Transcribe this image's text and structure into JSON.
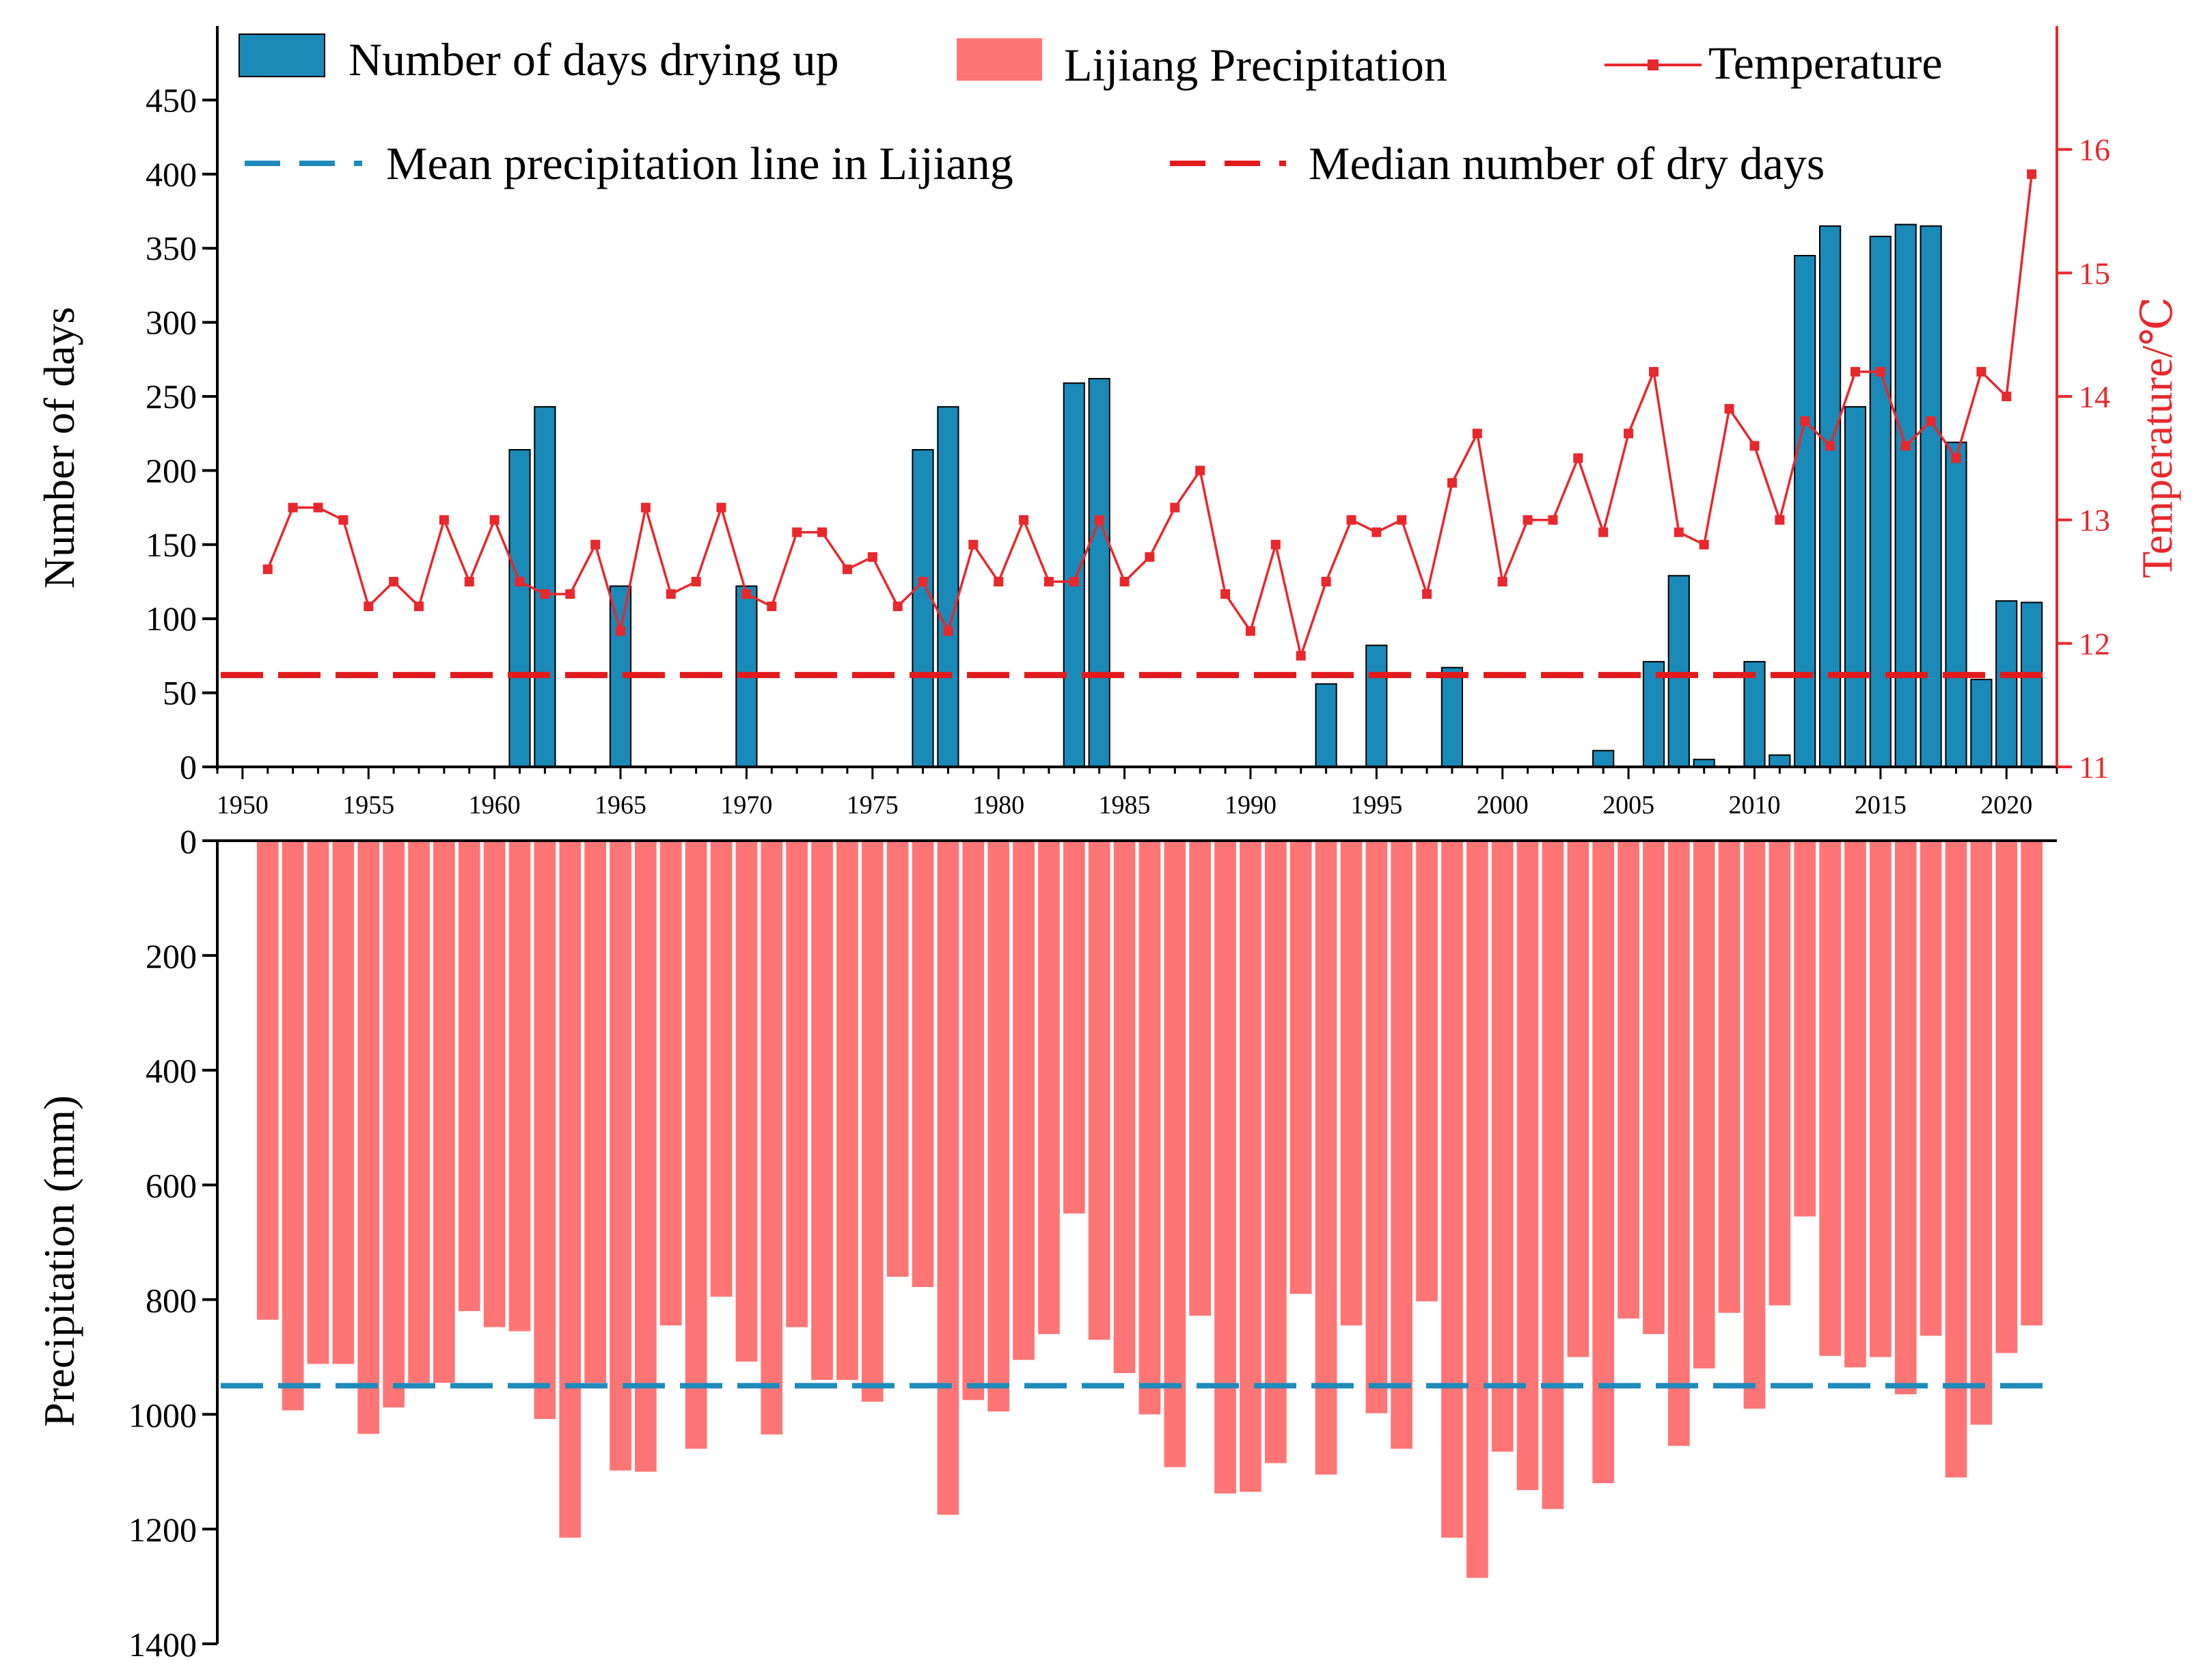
{
  "colors": {
    "drying_bar": "#1a8ab8",
    "precip_bar": "#ff7575",
    "temperature": "#e8282d",
    "mean_line": "#1f8bbb",
    "median_line": "#e31a1c",
    "axis": "#000000"
  },
  "legend": {
    "drying": "Number of days drying up",
    "precip": "Lijiang Precipitation",
    "temperature": "Temperature",
    "mean_line": "Mean precipitation line in Lijiang",
    "median_line": "Median number of dry days"
  },
  "chart_data": [
    {
      "type": "bar",
      "title": "",
      "xlabel": "",
      "ylabel": "Number of days",
      "ylabel_right": "Temperature/℃",
      "xlim": [
        1949,
        2022
      ],
      "ylim": [
        0,
        500
      ],
      "yticks": [
        0,
        50,
        100,
        150,
        200,
        250,
        300,
        350,
        400,
        450
      ],
      "xticks": [
        1950,
        1955,
        1960,
        1965,
        1970,
        1975,
        1980,
        1985,
        1990,
        1995,
        2000,
        2005,
        2010,
        2015,
        2020
      ],
      "y2lim": [
        11,
        17
      ],
      "y2ticks": [
        11,
        12,
        13,
        14,
        15,
        16
      ],
      "median_dry_days": 62,
      "series": [
        {
          "name": "Number of days drying up",
          "type": "bar",
          "x": [
            1961,
            1962,
            1965,
            1970,
            1977,
            1978,
            1983,
            1984,
            1993,
            1995,
            1998,
            2004,
            2006,
            2007,
            2008,
            2010,
            2011,
            2012,
            2013,
            2014,
            2015,
            2016,
            2017,
            2018,
            2019,
            2020,
            2021
          ],
          "values": [
            214,
            243,
            122,
            122,
            214,
            243,
            259,
            262,
            56,
            82,
            67,
            11,
            71,
            129,
            5,
            71,
            8,
            345,
            365,
            243,
            358,
            366,
            365,
            219,
            59,
            112,
            111
          ]
        },
        {
          "name": "Temperature",
          "type": "line",
          "axis": "right",
          "x": [
            1951,
            1952,
            1953,
            1954,
            1955,
            1956,
            1957,
            1958,
            1959,
            1960,
            1961,
            1962,
            1963,
            1964,
            1965,
            1966,
            1967,
            1968,
            1969,
            1970,
            1971,
            1972,
            1973,
            1974,
            1975,
            1976,
            1977,
            1978,
            1979,
            1980,
            1981,
            1982,
            1983,
            1984,
            1985,
            1986,
            1987,
            1988,
            1989,
            1990,
            1991,
            1992,
            1993,
            1994,
            1995,
            1996,
            1997,
            1998,
            1999,
            2000,
            2001,
            2002,
            2003,
            2004,
            2005,
            2006,
            2007,
            2008,
            2009,
            2010,
            2011,
            2012,
            2013,
            2014,
            2015,
            2016,
            2017,
            2018,
            2019,
            2020,
            2021
          ],
          "values": [
            12.6,
            13.1,
            13.1,
            13.0,
            12.3,
            12.5,
            12.3,
            13.0,
            12.5,
            13.0,
            12.5,
            12.4,
            12.4,
            12.8,
            12.1,
            13.1,
            12.4,
            12.5,
            13.1,
            12.4,
            12.3,
            12.9,
            12.9,
            12.6,
            12.7,
            12.3,
            12.5,
            12.1,
            12.8,
            12.5,
            13.0,
            12.5,
            12.5,
            13.0,
            12.5,
            12.7,
            13.1,
            13.4,
            12.4,
            12.1,
            12.8,
            11.9,
            12.5,
            13.0,
            12.9,
            13.0,
            12.4,
            13.3,
            13.7,
            12.5,
            13.0,
            13.0,
            13.5,
            12.9,
            13.7,
            14.2,
            12.9,
            12.8,
            13.9,
            13.6,
            13.0,
            13.8,
            13.6,
            14.2,
            14.2,
            13.6,
            13.8,
            13.5,
            14.2,
            14.0,
            15.8
          ]
        }
      ]
    },
    {
      "type": "bar",
      "title": "",
      "xlabel": "",
      "ylabel": "Precipitation (mm)",
      "ylim": [
        0,
        1400
      ],
      "yticks": [
        0,
        200,
        400,
        600,
        800,
        1000,
        1200,
        1400
      ],
      "inverted": true,
      "mean_precipitation": 950,
      "series": [
        {
          "name": "Lijiang Precipitation",
          "type": "bar",
          "x": [
            1951,
            1952,
            1953,
            1954,
            1955,
            1956,
            1957,
            1958,
            1959,
            1960,
            1961,
            1962,
            1963,
            1964,
            1965,
            1966,
            1967,
            1968,
            1969,
            1970,
            1971,
            1972,
            1973,
            1974,
            1975,
            1976,
            1977,
            1978,
            1979,
            1980,
            1981,
            1982,
            1983,
            1984,
            1985,
            1986,
            1987,
            1988,
            1989,
            1990,
            1991,
            1992,
            1993,
            1994,
            1995,
            1996,
            1997,
            1998,
            1999,
            2000,
            2001,
            2002,
            2003,
            2004,
            2005,
            2006,
            2007,
            2008,
            2009,
            2010,
            2011,
            2012,
            2013,
            2014,
            2015,
            2016,
            2017,
            2018,
            2019,
            2020,
            2021
          ],
          "values": [
            835,
            993,
            912,
            912,
            1034,
            988,
            945,
            945,
            820,
            848,
            855,
            1008,
            1215,
            945,
            1098,
            1100,
            845,
            1060,
            795,
            908,
            1035,
            848,
            940,
            940,
            978,
            760,
            778,
            1175,
            975,
            995,
            905,
            860,
            650,
            870,
            928,
            1000,
            1092,
            828,
            1138,
            1135,
            1085,
            790,
            1105,
            845,
            998,
            1060,
            803,
            1215,
            1285,
            1065,
            1132,
            1165,
            900,
            1120,
            833,
            860,
            1055,
            920,
            823,
            990,
            810,
            655,
            898,
            918,
            900,
            965,
            863,
            1110,
            1018,
            893,
            845
          ]
        }
      ]
    }
  ]
}
